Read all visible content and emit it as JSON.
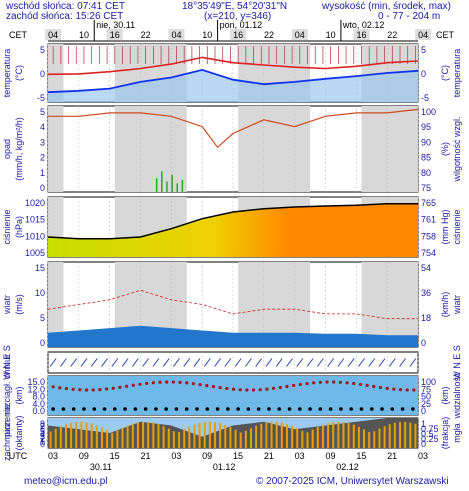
{
  "header": {
    "sunrise": "wschód słońca: 07:41 CET",
    "sunset": "zachód słońca: 15:26 CET",
    "coords": "18°35'49\"E, 54°20'31\"N",
    "grid": "(x=210, y=346)",
    "elev_title": "wysokość (min, środek, max)",
    "elev_values": "0 - 77 - 204 m"
  },
  "timezone_left": "CET",
  "timezone_right": "CET",
  "timezone_bottom": "UTC",
  "top_axis": {
    "day_labels": [
      "nie, 30.11",
      "pon, 01.12",
      "wto, 02.12"
    ],
    "hour_labels": [
      "04",
      "10",
      "16",
      "22",
      "04",
      "10",
      "16",
      "22",
      "04",
      "10",
      "16",
      "22",
      "04"
    ]
  },
  "bottom_axis": {
    "hour_labels": [
      "03",
      "09",
      "15",
      "21",
      "03",
      "09",
      "15",
      "21",
      "03",
      "09",
      "15",
      "21",
      "03"
    ],
    "day_labels": [
      "30.11",
      "01.12",
      "02.12"
    ]
  },
  "panels": {
    "temperature": {
      "left_label": "temperatura",
      "left_unit": "(°C)",
      "right_label": "temperatura",
      "right_unit": "(°C)",
      "ticks_left": [
        "5",
        "0",
        "-5"
      ],
      "ticks_right": [
        "5",
        "0",
        "-5"
      ]
    },
    "humidity": {
      "left_label": "opad",
      "left_unit": "(mm/h, kg/m²/h)",
      "right_label": "wilgotność wzgl.",
      "right_unit": "(%)",
      "ticks_left": [
        "5",
        "4",
        "3",
        "2",
        "1",
        "0"
      ],
      "ticks_right": [
        "100",
        "95",
        "90",
        "85",
        "80",
        "75"
      ]
    },
    "pressure": {
      "left_label": "ciśnienie",
      "left_unit": "(hPa)",
      "right_label": "ciśnienie",
      "right_unit": "(mm Hg)",
      "ticks_left": [
        "1020",
        "1015",
        "1010",
        "1005"
      ],
      "ticks_right": [
        "765",
        "761",
        "758",
        "754"
      ]
    },
    "wind": {
      "left_label": "wiatr",
      "left_unit": "(m/s)",
      "right_label": "wiatr",
      "right_unit": "(km/h)",
      "ticks_left": [
        "15",
        "10",
        "5",
        "0"
      ],
      "ticks_right": [
        "54",
        "36",
        "18",
        "0"
      ]
    },
    "winddir": {
      "left_label": "W N E S",
      "right_label": "W N E S"
    },
    "visibility": {
      "left_label": "pion. rozciągł. chmur",
      "left_unit": "(km)",
      "right_label": "widzialność",
      "right_unit": "(km)",
      "ticks_left": [
        "15.0",
        "12.0",
        "8.0",
        "4.0",
        "0.0"
      ],
      "ticks_right": [
        "100",
        "75",
        "50",
        "25",
        "0"
      ]
    },
    "cloud": {
      "left_label": "zachmurzenie",
      "left_unit": "(oktanty)",
      "right_label": "mgła",
      "right_unit": "(frakcja)",
      "ticks_left": [
        "8",
        "7",
        "6",
        "5",
        "4",
        "3",
        "2",
        "1",
        "0"
      ],
      "ticks_right": [
        "1",
        "0.75",
        "0.5",
        "0.25",
        "0"
      ]
    }
  },
  "footer": {
    "email": "meteo@icm.edu.pl",
    "copyright": "© 2007-2025 ICM, Uniwersytet Warszawski"
  },
  "colors": {
    "temp_max": "#dd2222",
    "temp_line": "#1133ee",
    "humidity_line": "#d04820",
    "pressure_low": "#c8e000",
    "pressure_high": "#ff8800",
    "wind_area": "#2277cc",
    "sky": "#6fb8e8",
    "cloud_bar": "#e8a000"
  },
  "chart_data": [
    {
      "type": "line",
      "panel": "temperature",
      "x_hours": [
        0,
        6,
        12,
        18,
        24,
        30,
        36,
        42,
        48,
        54,
        60,
        66,
        72
      ],
      "series": [
        {
          "values": [
            0.2,
            0.3,
            0.8,
            1.5,
            2.5,
            4.0,
            2.8,
            2.3,
            1.8,
            1.5,
            2.0,
            2.8,
            3.2
          ]
        },
        {
          "values": [
            -3.8,
            -3.5,
            -3.0,
            -1.5,
            -0.5,
            1.2,
            -1.0,
            -2.0,
            -1.5,
            -0.8,
            -0.2,
            0.5,
            1.0
          ]
        }
      ],
      "ylim": [
        -6,
        7
      ]
    },
    {
      "type": "line",
      "panel": "humidity",
      "x_hours": [
        0,
        6,
        12,
        18,
        24,
        30,
        33,
        36,
        42,
        48,
        54,
        60,
        66,
        72
      ],
      "series": [
        {
          "values": [
            97,
            97,
            98,
            98,
            97,
            94,
            88,
            92,
            96,
            94,
            97,
            98,
            98,
            99
          ]
        }
      ],
      "ylim": [
        75,
        100
      ]
    },
    {
      "type": "area",
      "panel": "pressure",
      "x_hours": [
        0,
        6,
        12,
        18,
        24,
        30,
        36,
        42,
        48,
        54,
        60,
        66,
        72
      ],
      "series": [
        {
          "values": [
            1011.0,
            1010.5,
            1010.5,
            1011.0,
            1013.5,
            1016.5,
            1018.5,
            1019.5,
            1020.0,
            1020.3,
            1020.5,
            1021.0,
            1021.0
          ]
        }
      ],
      "ylim": [
        1005,
        1023
      ]
    },
    {
      "type": "line",
      "panel": "wind",
      "x_hours": [
        0,
        6,
        12,
        18,
        24,
        30,
        36,
        42,
        48,
        54,
        60,
        66,
        72
      ],
      "series": [
        {
          "values": [
            8,
            9,
            10,
            12,
            10,
            9,
            7,
            8,
            8,
            7,
            7,
            6,
            6
          ]
        },
        {
          "values": [
            3,
            3.5,
            4,
            4.5,
            4,
            3.5,
            3,
            3,
            3,
            2.8,
            2.8,
            2.5,
            2.5
          ]
        }
      ],
      "ylim": [
        0,
        18
      ]
    },
    {
      "type": "bar",
      "panel": "cloud",
      "x_hours": [
        0,
        6,
        12,
        18,
        24,
        30,
        36,
        42,
        48,
        54,
        60,
        66,
        72
      ],
      "series": [
        {
          "values": [
            6,
            5,
            4,
            7,
            6,
            3,
            6,
            7,
            5,
            6,
            7,
            8,
            8
          ]
        }
      ],
      "ylim": [
        0,
        8
      ]
    }
  ]
}
